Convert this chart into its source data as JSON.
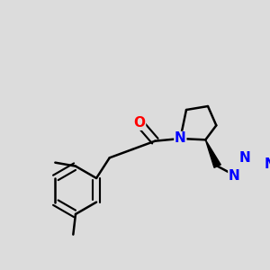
{
  "bg_color": "#dcdcdc",
  "bond_color": "#000000",
  "bond_width": 1.8,
  "atom_colors": {
    "O": "#ff0000",
    "N": "#0000ff",
    "C": "#000000"
  },
  "font_size_atom": 11,
  "font_size_methyl": 10
}
